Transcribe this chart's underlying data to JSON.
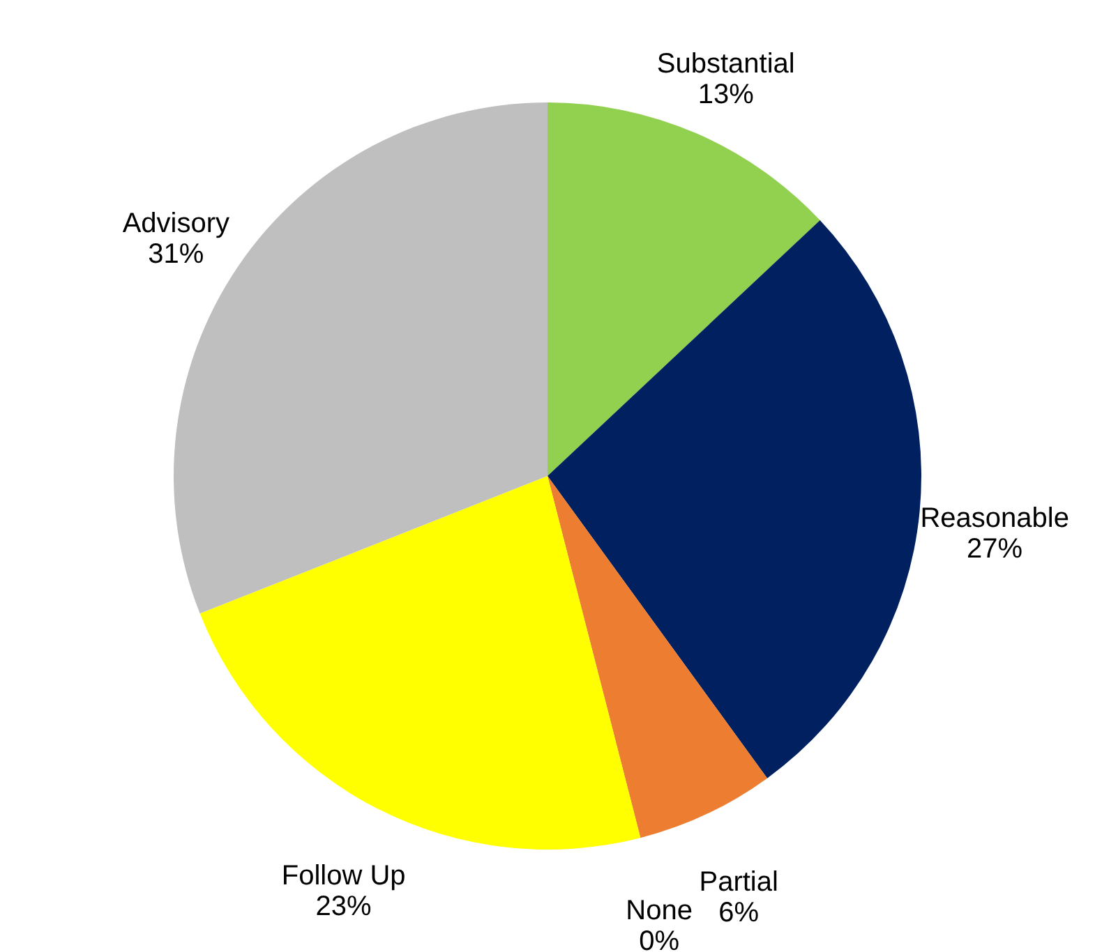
{
  "chart_data": {
    "type": "pie",
    "categories": [
      "Substantial",
      "Reasonable",
      "Partial",
      "None",
      "Follow Up",
      "Advisory"
    ],
    "values": [
      13,
      27,
      6,
      0,
      23,
      31
    ],
    "value_labels": [
      "13%",
      "27%",
      "6%",
      "0%",
      "23%",
      "31%"
    ],
    "colors": [
      "#92d050",
      "#002060",
      "#ed7d31",
      "#4472c4",
      "#ffff00",
      "#bfbfbf"
    ]
  }
}
